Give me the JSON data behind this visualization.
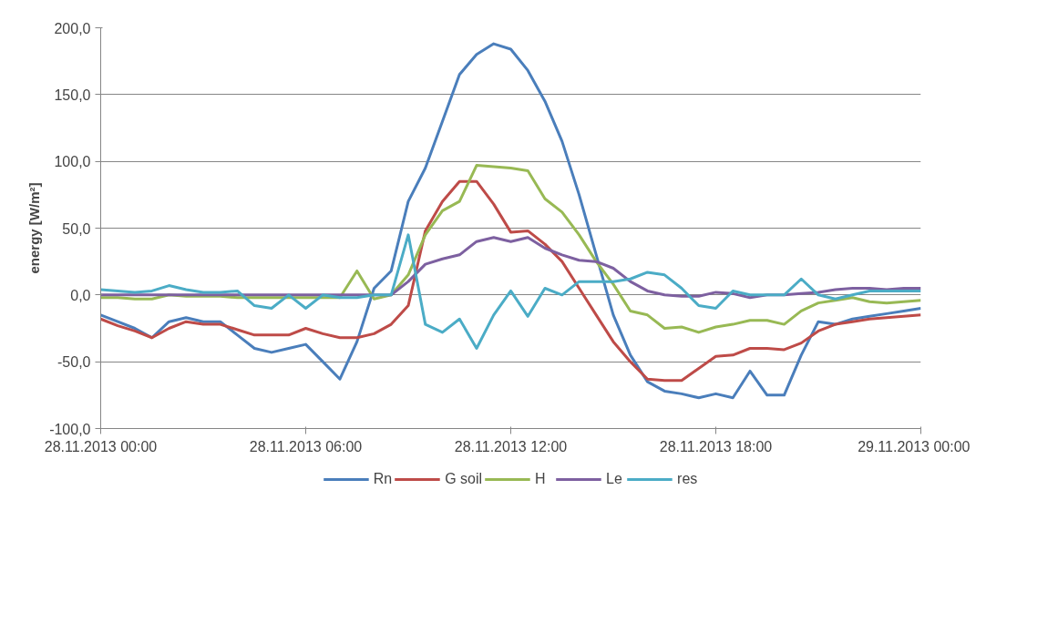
{
  "chart_data": {
    "type": "line",
    "ylabel": "energy [W/m²]",
    "x": [
      "2013-11-28T00:00",
      "2013-11-28T00:30",
      "2013-11-28T01:00",
      "2013-11-28T01:30",
      "2013-11-28T02:00",
      "2013-11-28T02:30",
      "2013-11-28T03:00",
      "2013-11-28T03:30",
      "2013-11-28T04:00",
      "2013-11-28T04:30",
      "2013-11-28T05:00",
      "2013-11-28T05:30",
      "2013-11-28T06:00",
      "2013-11-28T06:30",
      "2013-11-28T07:00",
      "2013-11-28T07:30",
      "2013-11-28T08:00",
      "2013-11-28T08:30",
      "2013-11-28T09:00",
      "2013-11-28T09:30",
      "2013-11-28T10:00",
      "2013-11-28T10:30",
      "2013-11-28T11:00",
      "2013-11-28T11:30",
      "2013-11-28T12:00",
      "2013-11-28T12:30",
      "2013-11-28T13:00",
      "2013-11-28T13:30",
      "2013-11-28T14:00",
      "2013-11-28T14:30",
      "2013-11-28T15:00",
      "2013-11-28T15:30",
      "2013-11-28T16:00",
      "2013-11-28T16:30",
      "2013-11-28T17:00",
      "2013-11-28T17:30",
      "2013-11-28T18:00",
      "2013-11-28T18:30",
      "2013-11-28T19:00",
      "2013-11-28T19:30",
      "2013-11-28T20:00",
      "2013-11-28T20:30",
      "2013-11-28T21:00",
      "2013-11-28T21:30",
      "2013-11-28T22:00",
      "2013-11-28T22:30",
      "2013-11-28T23:00",
      "2013-11-28T23:30",
      "2013-11-29T00:00"
    ],
    "series": [
      {
        "name": "Rn",
        "color": "#4a7ebb",
        "values": [
          -15,
          -20,
          -25,
          -32,
          -20,
          -17,
          -20,
          -20,
          -30,
          -40,
          -43,
          -40,
          -37,
          -50,
          -63,
          -35,
          5,
          18,
          70,
          95,
          130,
          165,
          180,
          188,
          184,
          168,
          145,
          115,
          75,
          30,
          -15,
          -45,
          -65,
          -72,
          -74,
          -77,
          -74,
          -77,
          -57,
          -75,
          -75,
          -45,
          -20,
          -22,
          -18,
          -16,
          -14,
          -12,
          -10
        ]
      },
      {
        "name": "G soil",
        "color": "#be4b48",
        "values": [
          -18,
          -23,
          -27,
          -32,
          -25,
          -20,
          -22,
          -22,
          -26,
          -30,
          -30,
          -30,
          -25,
          -29,
          -32,
          -32,
          -29,
          -22,
          -8,
          48,
          70,
          85,
          85,
          68,
          47,
          48,
          38,
          25,
          5,
          -15,
          -35,
          -50,
          -63,
          -64,
          -64,
          -55,
          -46,
          -45,
          -40,
          -40,
          -41,
          -36,
          -27,
          -22,
          -20,
          -18,
          -17,
          -16,
          -15
        ]
      },
      {
        "name": "H",
        "color": "#98b954",
        "values": [
          -2,
          -2,
          -3,
          -3,
          0,
          -1,
          -1,
          -1,
          -2,
          -2,
          -2,
          -2,
          -2,
          -2,
          -2,
          18,
          -3,
          0,
          15,
          45,
          63,
          70,
          97,
          96,
          95,
          93,
          72,
          62,
          45,
          25,
          8,
          -12,
          -15,
          -25,
          -24,
          -28,
          -24,
          -22,
          -19,
          -19,
          -22,
          -12,
          -6,
          -4,
          -2,
          -5,
          -6,
          -5,
          -4
        ]
      },
      {
        "name": "Le",
        "color": "#7d60a0",
        "values": [
          0,
          0,
          0,
          0,
          0,
          0,
          0,
          0,
          0,
          0,
          0,
          0,
          0,
          0,
          0,
          0,
          0,
          0,
          10,
          23,
          27,
          30,
          40,
          43,
          40,
          43,
          35,
          30,
          26,
          25,
          20,
          10,
          3,
          0,
          -1,
          -1,
          2,
          1,
          -2,
          0,
          0,
          1,
          2,
          4,
          5,
          5,
          4,
          5,
          5
        ]
      },
      {
        "name": "res",
        "color": "#4bacc6",
        "values": [
          4,
          3,
          2,
          3,
          7,
          4,
          2,
          2,
          3,
          -8,
          -10,
          0,
          -10,
          0,
          -2,
          -2,
          0,
          0,
          45,
          -22,
          -28,
          -18,
          -40,
          -15,
          3,
          -16,
          5,
          0,
          10,
          10,
          10,
          12,
          17,
          15,
          5,
          -8,
          -10,
          3,
          0,
          0,
          0,
          12,
          0,
          -3,
          0,
          3,
          3,
          3,
          3
        ]
      }
    ],
    "xlim": [
      "2013-11-28T00:00",
      "2013-11-29T00:00"
    ],
    "xticks": [
      {
        "value": "2013-11-28T00:00",
        "label": "28.11.2013 00:00"
      },
      {
        "value": "2013-11-28T06:00",
        "label": "28.11.2013 06:00"
      },
      {
        "value": "2013-11-28T12:00",
        "label": "28.11.2013 12:00"
      },
      {
        "value": "2013-11-28T18:00",
        "label": "28.11.2013 18:00"
      },
      {
        "value": "2013-11-29T00:00",
        "label": "29.11.2013 00:00"
      }
    ],
    "ylim": [
      -100,
      200
    ],
    "yticks": [
      {
        "value": -100,
        "label": "-100,0"
      },
      {
        "value": -50,
        "label": "-50,0"
      },
      {
        "value": 0,
        "label": "0,0"
      },
      {
        "value": 50,
        "label": "50,0"
      },
      {
        "value": 100,
        "label": "100,0"
      },
      {
        "value": 150,
        "label": "150,0"
      },
      {
        "value": 200,
        "label": "200,0"
      }
    ],
    "grid": "y",
    "legend": "bottom"
  }
}
